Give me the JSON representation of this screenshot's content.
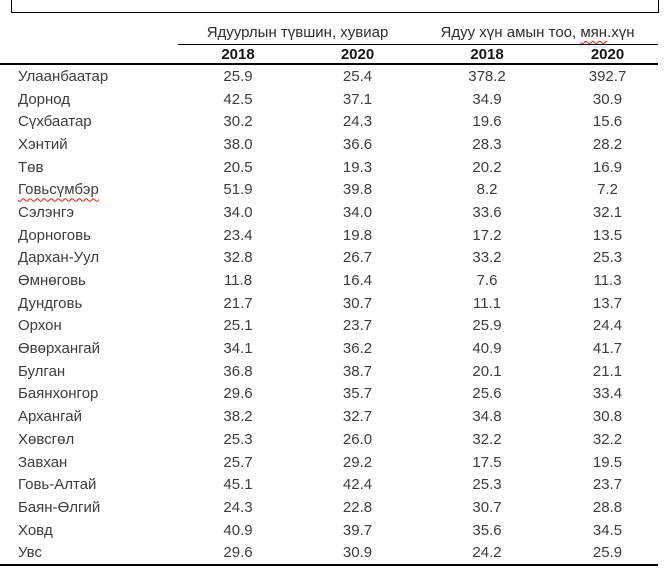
{
  "table": {
    "group_headers": {
      "poverty_level": "Ядуурлын түвшин, хувиар",
      "poor_count_prefix": "Ядуу хүн амын тоо, ",
      "poor_count_misspelled": "мян",
      "poor_count_suffix": ".хүн"
    },
    "year_columns": [
      "2018",
      "2020",
      "2018",
      "2020"
    ],
    "rows": [
      {
        "region": "Улаанбаатар",
        "values": [
          "25.9",
          "25.4",
          "378.2",
          "392.7"
        ]
      },
      {
        "region": "Дорнод",
        "values": [
          "42.5",
          "37.1",
          "34.9",
          "30.9"
        ]
      },
      {
        "region": "Сүхбаатар",
        "values": [
          "30.2",
          "24.3",
          "19.6",
          "15.6"
        ]
      },
      {
        "region": "Хэнтий",
        "values": [
          "38.0",
          "36.6",
          "28.3",
          "28.2"
        ]
      },
      {
        "region": "Төв",
        "values": [
          "20.5",
          "19.3",
          "20.2",
          "16.9"
        ]
      },
      {
        "region": "Говьсүмбэр",
        "values": [
          "51.9",
          "39.8",
          "8.2",
          "7.2"
        ],
        "misspelled": true
      },
      {
        "region": "Сэлэнгэ",
        "values": [
          "34.0",
          "34.0",
          "33.6",
          "32.1"
        ]
      },
      {
        "region": "Дорноговь",
        "values": [
          "23.4",
          "19.8",
          "17.2",
          "13.5"
        ]
      },
      {
        "region": "Дархан-Уул",
        "values": [
          "32.8",
          "26.7",
          "33.2",
          "25.3"
        ]
      },
      {
        "region": "Өмнөговь",
        "values": [
          "11.8",
          "16.4",
          "7.6",
          "11.3"
        ]
      },
      {
        "region": "Дундговь",
        "values": [
          "21.7",
          "30.7",
          "11.1",
          "13.7"
        ]
      },
      {
        "region": "Орхон",
        "values": [
          "25.1",
          "23.7",
          "25.9",
          "24.4"
        ]
      },
      {
        "region": "Өвөрхангай",
        "values": [
          "34.1",
          "36.2",
          "40.9",
          "41.7"
        ]
      },
      {
        "region": "Булган",
        "values": [
          "36.8",
          "38.7",
          "20.1",
          "21.1"
        ]
      },
      {
        "region": "Баянхонгор",
        "values": [
          "29.6",
          "35.7",
          "25.6",
          "33.4"
        ]
      },
      {
        "region": "Архангай",
        "values": [
          "38.2",
          "32.7",
          "34.8",
          "30.8"
        ]
      },
      {
        "region": "Хөвсгөл",
        "values": [
          "25.3",
          "26.0",
          "32.2",
          "32.2"
        ]
      },
      {
        "region": "Завхан",
        "values": [
          "25.7",
          "29.2",
          "17.5",
          "19.5"
        ]
      },
      {
        "region": "Говь-Алтай",
        "values": [
          "45.1",
          "42.4",
          "25.3",
          "23.7"
        ]
      },
      {
        "region": "Баян-Өлгий",
        "values": [
          "24.3",
          "22.8",
          "30.7",
          "28.8"
        ]
      },
      {
        "region": "Ховд",
        "values": [
          "40.9",
          "39.7",
          "35.6",
          "34.5"
        ]
      },
      {
        "region": "Увс",
        "values": [
          "29.6",
          "30.9",
          "24.2",
          "25.9"
        ]
      }
    ]
  },
  "colors": {
    "rule_line": "#000000",
    "body_text": "#3d3d3d",
    "header_text": "#161616",
    "spellcheck_red": "#e3180c"
  }
}
